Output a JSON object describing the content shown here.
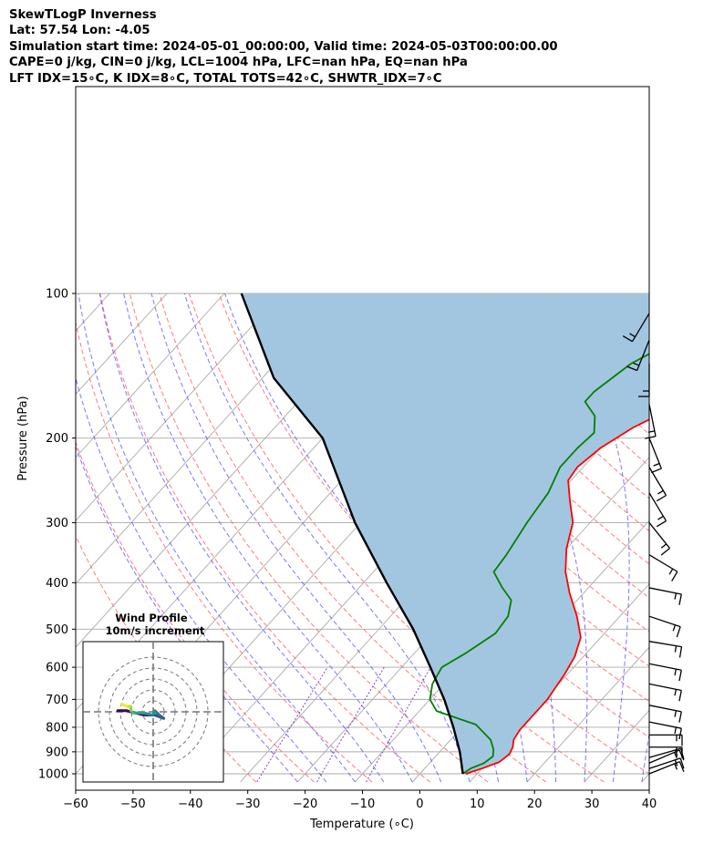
{
  "header": {
    "line1": "SkewTLogP Inverness",
    "line2": "Lat: 57.54   Lon: -4.05",
    "line3": "Simulation start time: 2024-05-01_00:00:00, Valid time: 2024-05-03T00:00:00.00",
    "line4": "CAPE=0 j/kg, CIN=0 j/kg, LCL=1004 hPa, LFC=nan hPa, EQ=nan hPa",
    "line5": "LFT IDX=15∘C, K IDX=8∘C, TOTAL TOTS=42∘C, SHWTR_IDX=7∘C"
  },
  "axes": {
    "xlabel": "Temperature (∘C)",
    "ylabel": "Pressure (hPa)"
  },
  "hodograph": {
    "title_line1": "Wind Profile",
    "title_line2": "10m/s increment"
  },
  "colors": {
    "temperature": "#ff0000",
    "dewpoint": "#008000",
    "parcel": "#000000",
    "shading": "#a3c6e0",
    "dry_adiabat": "#ff5a5a",
    "moist_adiabat": "#4b4bff",
    "mixing_ratio": "#8a3fc0",
    "isotherm": "#aaaaaa"
  },
  "chart_data": {
    "type": "line",
    "subtype": "skew-t log-p",
    "xlim": [
      -60,
      40
    ],
    "ylim": [
      1040,
      100
    ],
    "x_ticks": [
      "−60",
      "−50",
      "−40",
      "−30",
      "−20",
      "−10",
      "0",
      "10",
      "20",
      "30",
      "40"
    ],
    "y_ticks": [
      "100",
      "200",
      "300",
      "400",
      "500",
      "600",
      "700",
      "800",
      "900",
      "1000"
    ],
    "y_scale": "log",
    "grid": true,
    "series": [
      {
        "key": "temperature",
        "points": [
          [
            8,
            1000
          ],
          [
            10,
            975
          ],
          [
            12,
            945
          ],
          [
            12.5,
            910
          ],
          [
            12,
            880
          ],
          [
            11,
            850
          ],
          [
            10.5,
            810
          ],
          [
            10.5,
            780
          ],
          [
            10.5,
            750
          ],
          [
            10.5,
            700
          ],
          [
            10,
            660
          ],
          [
            9.5,
            620
          ],
          [
            8.5,
            570
          ],
          [
            6.5,
            520
          ],
          [
            2.5,
            470
          ],
          [
            -2.5,
            420
          ],
          [
            -6.5,
            380
          ],
          [
            -10,
            340
          ],
          [
            -13,
            300
          ],
          [
            -17,
            270
          ],
          [
            -20.5,
            245
          ],
          [
            -21,
            230
          ],
          [
            -20,
            210
          ],
          [
            -17.5,
            190
          ],
          [
            -13,
            170
          ],
          [
            -7,
            150
          ],
          [
            -1,
            132
          ],
          [
            6,
            118
          ],
          [
            12,
            108
          ],
          [
            15,
            100
          ]
        ]
      },
      {
        "key": "dewpoint",
        "points": [
          [
            7.5,
            1000
          ],
          [
            8,
            975
          ],
          [
            9.5,
            950
          ],
          [
            10,
            920
          ],
          [
            9,
            890
          ],
          [
            7,
            850
          ],
          [
            2,
            790
          ],
          [
            -7,
            740
          ],
          [
            -10,
            700
          ],
          [
            -12,
            650
          ],
          [
            -13,
            600
          ],
          [
            -11,
            560
          ],
          [
            -9,
            510
          ],
          [
            -9.5,
            470
          ],
          [
            -11.5,
            435
          ],
          [
            -15,
            410
          ],
          [
            -19,
            380
          ],
          [
            -19.5,
            350
          ],
          [
            -21,
            300
          ],
          [
            -22,
            260
          ],
          [
            -24,
            230
          ],
          [
            -24,
            210
          ],
          [
            -23.5,
            195
          ],
          [
            -26,
            180
          ],
          [
            -30,
            168
          ],
          [
            -30,
            160
          ],
          [
            -28,
            140
          ],
          [
            -22,
            118
          ],
          [
            -16,
            100
          ]
        ]
      },
      {
        "key": "parcel",
        "points": [
          [
            7.5,
            1000
          ],
          [
            3.5,
            900
          ],
          [
            -1.5,
            800
          ],
          [
            -7.5,
            700
          ],
          [
            -15,
            600
          ],
          [
            -24,
            500
          ],
          [
            -36,
            400
          ],
          [
            -51,
            300
          ],
          [
            -70,
            200
          ],
          [
            -88,
            150
          ],
          [
            -107,
            100
          ]
        ]
      }
    ],
    "wind_barbs": [
      {
        "p": 1000,
        "u": 5,
        "v": 2
      },
      {
        "p": 975,
        "u": 6,
        "v": 2
      },
      {
        "p": 950,
        "u": 7,
        "v": 3
      },
      {
        "p": 925,
        "u": 7,
        "v": 2
      },
      {
        "p": 880,
        "u": 6,
        "v": 0
      },
      {
        "p": 830,
        "u": 5,
        "v": 0
      },
      {
        "p": 780,
        "u": 5,
        "v": -1
      },
      {
        "p": 720,
        "u": 5,
        "v": -1
      },
      {
        "p": 650,
        "u": 5,
        "v": -1
      },
      {
        "p": 590,
        "u": 5,
        "v": -1
      },
      {
        "p": 530,
        "u": 6,
        "v": -1
      },
      {
        "p": 470,
        "u": 6,
        "v": -2
      },
      {
        "p": 410,
        "u": 5,
        "v": -1
      },
      {
        "p": 350,
        "u": 5,
        "v": -3
      },
      {
        "p": 300,
        "u": 4,
        "v": -5
      },
      {
        "p": 260,
        "u": 3,
        "v": -5
      },
      {
        "p": 230,
        "u": 3,
        "v": -5
      },
      {
        "p": 200,
        "u": 2,
        "v": -5
      },
      {
        "p": 170,
        "u": 1,
        "v": -5
      },
      {
        "p": 140,
        "u": 0,
        "v": -5
      },
      {
        "p": 125,
        "u": -2,
        "v": -5
      },
      {
        "p": 110,
        "u": -3,
        "v": -5
      }
    ],
    "hodograph_path": [
      [
        12,
        3
      ],
      [
        8,
        3
      ],
      [
        0,
        1
      ],
      [
        -5,
        1
      ],
      [
        -9,
        -0.5
      ],
      [
        -7,
        1
      ],
      [
        -5,
        3
      ],
      [
        -4,
        1
      ],
      [
        0,
        2
      ],
      [
        5,
        2
      ],
      [
        6,
        3
      ],
      [
        6,
        5
      ],
      [
        8,
        5
      ],
      [
        10,
        6
      ]
    ]
  }
}
